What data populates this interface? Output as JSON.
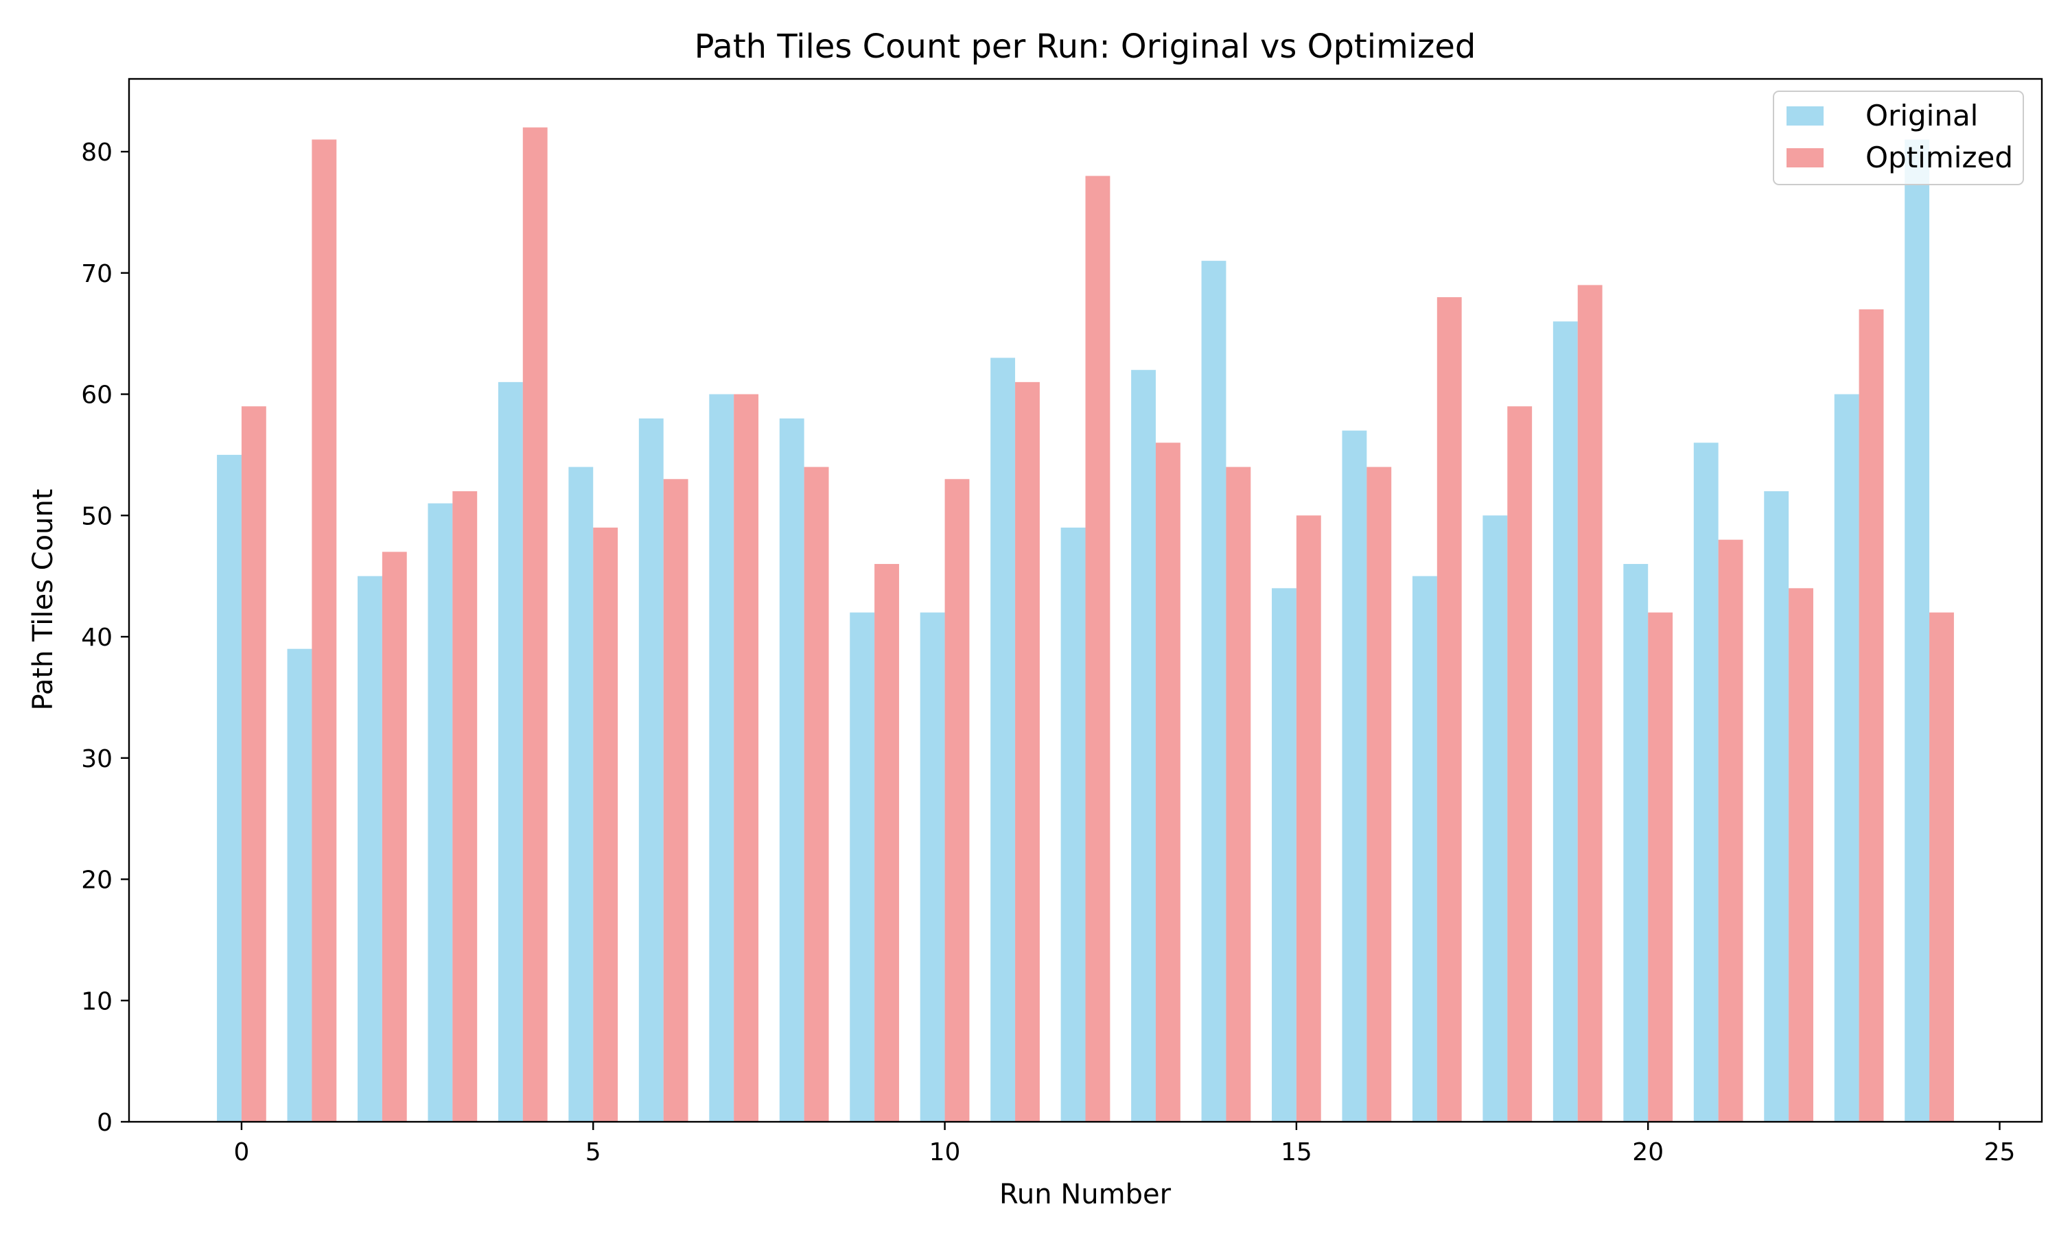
{
  "chart_data": {
    "type": "bar",
    "title": "Path Tiles Count per Run: Original vs Optimized",
    "xlabel": "Run Number",
    "ylabel": "Path Tiles Count",
    "x": [
      0,
      1,
      2,
      3,
      4,
      5,
      6,
      7,
      8,
      9,
      10,
      11,
      12,
      13,
      14,
      15,
      16,
      17,
      18,
      19,
      20,
      21,
      22,
      23,
      24
    ],
    "xlim": [
      -1.6,
      25.6
    ],
    "ylim": [
      0,
      86
    ],
    "xticks": [
      0,
      5,
      10,
      15,
      20,
      25
    ],
    "yticks": [
      0,
      10,
      20,
      30,
      40,
      50,
      60,
      70,
      80
    ],
    "legend_position": "top-right",
    "grid": false,
    "series": [
      {
        "name": "Original",
        "color": "#87ceeb",
        "values": [
          55,
          39,
          45,
          51,
          61,
          54,
          58,
          60,
          58,
          42,
          42,
          63,
          49,
          62,
          71,
          44,
          57,
          45,
          50,
          66,
          46,
          56,
          52,
          60,
          81
        ]
      },
      {
        "name": "Optimized",
        "color": "#f08080",
        "values": [
          59,
          81,
          47,
          52,
          82,
          49,
          53,
          60,
          54,
          46,
          53,
          61,
          78,
          56,
          54,
          50,
          54,
          68,
          59,
          69,
          42,
          48,
          44,
          67,
          42
        ]
      }
    ]
  }
}
